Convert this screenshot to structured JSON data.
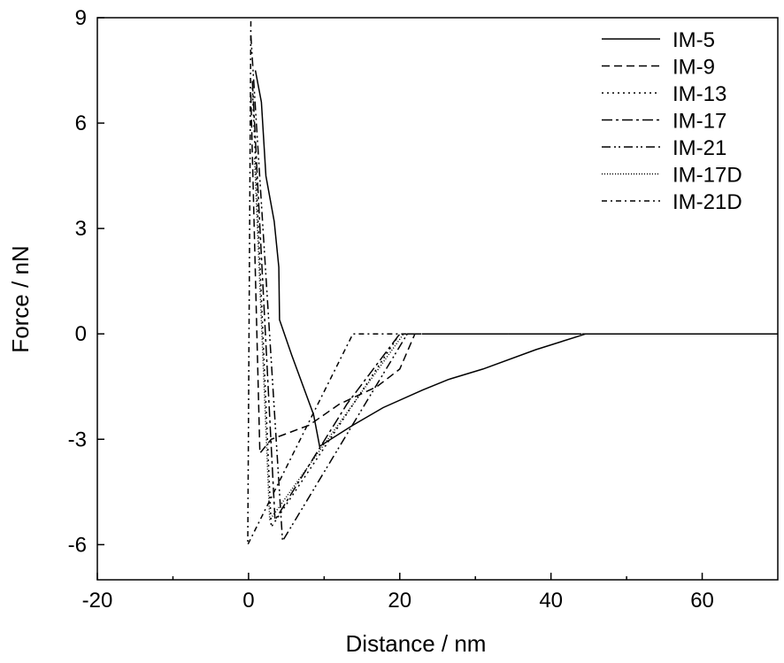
{
  "chart_data": {
    "type": "line",
    "title": "",
    "xlabel": "Distance / nm",
    "ylabel": "Force / nN",
    "xlim": [
      -20,
      70
    ],
    "ylim": [
      -7,
      9
    ],
    "xticks": [
      -20,
      0,
      20,
      40,
      60
    ],
    "yticks": [
      -6,
      -3,
      0,
      3,
      6,
      9
    ],
    "grid": false,
    "legend_position": "top-right",
    "series": [
      {
        "name": "IM-5",
        "style": "solid",
        "points": [
          [
            0.9,
            7.5
          ],
          [
            1.7,
            6.6
          ],
          [
            2.3,
            4.5
          ],
          [
            3.4,
            3.2
          ],
          [
            4.0,
            1.9
          ],
          [
            4.1,
            0.4
          ],
          [
            5.7,
            -0.6
          ],
          [
            8.6,
            -2.3
          ],
          [
            9.4,
            -3.2
          ],
          [
            13.8,
            -2.6
          ],
          [
            17.8,
            -2.1
          ],
          [
            23,
            -1.6
          ],
          [
            26.4,
            -1.3
          ],
          [
            31,
            -1.0
          ],
          [
            38,
            -0.45
          ],
          [
            44.6,
            0
          ],
          [
            70,
            0
          ]
        ]
      },
      {
        "name": "IM-9",
        "style": "dashed",
        "points": [
          [
            0.3,
            6.8
          ],
          [
            1.5,
            -3.4
          ],
          [
            3,
            -3.0
          ],
          [
            8,
            -2.6
          ],
          [
            12,
            -2.0
          ],
          [
            17,
            -1.5
          ],
          [
            20,
            -1.0
          ],
          [
            22,
            0
          ],
          [
            70,
            0
          ]
        ]
      },
      {
        "name": "IM-13",
        "style": "dotted",
        "points": [
          [
            0.5,
            7.0
          ],
          [
            3,
            -5.5
          ],
          [
            12,
            -2.6
          ],
          [
            20,
            0
          ],
          [
            70,
            0
          ]
        ]
      },
      {
        "name": "IM-17",
        "style": "dashdot",
        "points": [
          [
            0.5,
            7.2
          ],
          [
            3.5,
            -5.3
          ],
          [
            13,
            -2.0
          ],
          [
            20,
            0
          ],
          [
            70,
            0
          ]
        ]
      },
      {
        "name": "IM-21",
        "style": "dashdotdot",
        "points": [
          [
            0.3,
            8.5
          ],
          [
            4.5,
            -5.9
          ],
          [
            21,
            0
          ],
          [
            70,
            0
          ]
        ]
      },
      {
        "name": "IM-17D",
        "style": "finedot",
        "points": [
          [
            0.8,
            5.0
          ],
          [
            2.8,
            -5.3
          ],
          [
            20.5,
            0
          ],
          [
            70,
            0
          ]
        ]
      },
      {
        "name": "IM-21D",
        "style": "shortdashdot",
        "points": [
          [
            0.3,
            8.9
          ],
          [
            -0.1,
            -6.0
          ],
          [
            13.8,
            0
          ],
          [
            70,
            0
          ]
        ]
      }
    ]
  }
}
